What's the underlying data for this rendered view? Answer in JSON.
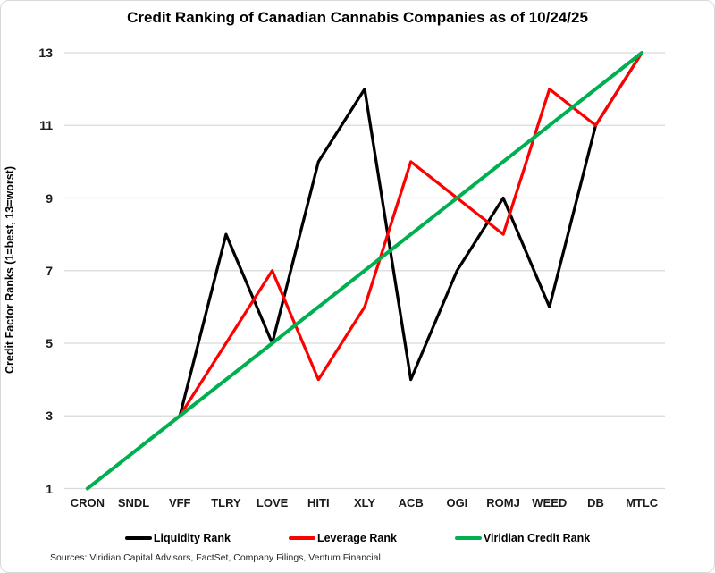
{
  "title": "Credit Ranking of Canadian Cannabis Companies as of 10/24/25",
  "footer": "Sources: Viridian Capital Advisors, FactSet, Company Filings, Ventum Financial",
  "colors": {
    "liquidity": "#000000",
    "leverage": "#ff0000",
    "viridian": "#00b050",
    "gridline": "#d9d9d9",
    "text": "#000000"
  },
  "chart_data": {
    "type": "line",
    "title": "Credit Ranking of Canadian Cannabis Companies as of 10/24/25",
    "xlabel": "",
    "ylabel": "Credit Factor Ranks (1=best, 13=worst)",
    "categories": [
      "CRON",
      "SNDL",
      "VFF",
      "TLRY",
      "LOVE",
      "HITI",
      "XLY",
      "ACB",
      "OGI",
      "ROMJ",
      "WEED",
      "DB",
      "MTLC"
    ],
    "series": [
      {
        "name": "Liquidity Rank",
        "color": "#000000",
        "width": 3.25,
        "values": [
          null,
          null,
          3,
          8,
          5,
          10,
          12,
          4,
          7,
          9,
          6,
          11,
          13
        ]
      },
      {
        "name": "Leverage Rank",
        "color": "#ff0000",
        "width": 3.25,
        "values": [
          null,
          null,
          3,
          5,
          7,
          4,
          6,
          10,
          9,
          8,
          12,
          11,
          13
        ]
      },
      {
        "name": "Viridian Credit Rank",
        "color": "#00b050",
        "width": 4,
        "values": [
          1,
          2,
          3,
          4,
          5,
          6,
          7,
          8,
          9,
          10,
          11,
          12,
          13
        ]
      }
    ],
    "y_ticks": [
      1,
      3,
      5,
      7,
      9,
      11,
      13
    ],
    "ylim": [
      1,
      13
    ],
    "grid": true,
    "legend_position": "bottom"
  }
}
